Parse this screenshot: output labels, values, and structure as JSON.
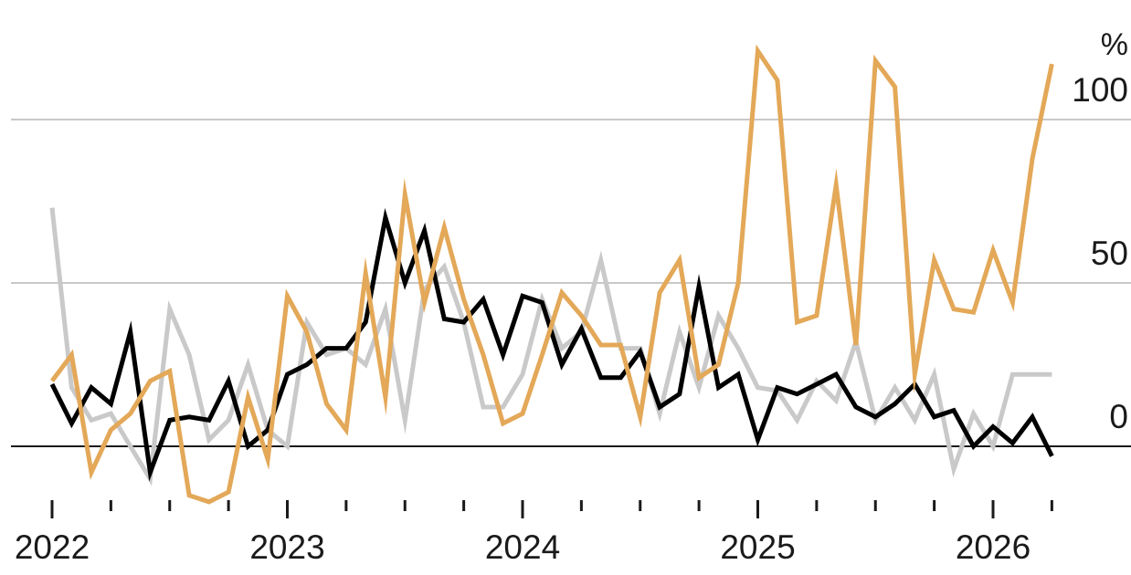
{
  "chart_data": {
    "type": "line",
    "title": "",
    "xlabel": "",
    "ylabel": "",
    "y_unit": "%",
    "xlim": [
      2022.0,
      2026.35
    ],
    "ylim": [
      -18,
      120
    ],
    "y_gridlines": [
      50,
      100
    ],
    "y_tick_labels": [
      "0",
      "50",
      "100"
    ],
    "y_tick_values": [
      0,
      50,
      100
    ],
    "x_tick_labels": [
      "2022",
      "2023",
      "2024",
      "2025",
      "2026"
    ],
    "x_tick_values": [
      2022,
      2023,
      2024,
      2025,
      2026
    ],
    "minor_tick_step": 0.25,
    "grid": true,
    "legend": "none",
    "series": [
      {
        "color": "#c9c9c9",
        "x": [
          2022.0,
          2022.083,
          2022.167,
          2022.25,
          2022.333,
          2022.417,
          2022.5,
          2022.583,
          2022.667,
          2022.75,
          2022.833,
          2022.917,
          2023.0,
          2023.083,
          2023.167,
          2023.25,
          2023.333,
          2023.417,
          2023.5,
          2023.583,
          2023.667,
          2023.75,
          2023.833,
          2023.917,
          2024.0,
          2024.083,
          2024.167,
          2024.25,
          2024.333,
          2024.417,
          2024.5,
          2024.583,
          2024.667,
          2024.75,
          2024.833,
          2024.917,
          2025.0,
          2025.083,
          2025.167,
          2025.25,
          2025.333,
          2025.417,
          2025.5,
          2025.583,
          2025.667,
          2025.75,
          2025.833,
          2025.917,
          2026.0,
          2026.083,
          2026.167,
          2026.25
        ],
        "values": [
          73,
          18,
          8,
          10,
          0,
          -10,
          42,
          28,
          2,
          8,
          25,
          5,
          0,
          38,
          28,
          30,
          25,
          42,
          8,
          48,
          55,
          38,
          12,
          12,
          22,
          45,
          30,
          35,
          57,
          30,
          30,
          10,
          35,
          18,
          40,
          30,
          18,
          17,
          8,
          20,
          14,
          32,
          8,
          18,
          8,
          22,
          -7,
          10,
          0,
          22,
          22,
          22
        ]
      },
      {
        "color": "#000000",
        "x": [
          2022.0,
          2022.083,
          2022.167,
          2022.25,
          2022.333,
          2022.417,
          2022.5,
          2022.583,
          2022.667,
          2022.75,
          2022.833,
          2022.917,
          2023.0,
          2023.083,
          2023.167,
          2023.25,
          2023.333,
          2023.417,
          2023.5,
          2023.583,
          2023.667,
          2023.75,
          2023.833,
          2023.917,
          2024.0,
          2024.083,
          2024.167,
          2024.25,
          2024.333,
          2024.417,
          2024.5,
          2024.583,
          2024.667,
          2024.75,
          2024.833,
          2024.917,
          2025.0,
          2025.083,
          2025.167,
          2025.25,
          2025.333,
          2025.417,
          2025.5,
          2025.583,
          2025.667,
          2025.75,
          2025.833,
          2025.917,
          2026.0,
          2026.083,
          2026.167,
          2026.25
        ],
        "values": [
          19,
          7,
          18,
          13,
          35,
          -8,
          8,
          9,
          8,
          20,
          0,
          5,
          22,
          25,
          30,
          30,
          38,
          70,
          50,
          66,
          39,
          38,
          45,
          28,
          46,
          44,
          25,
          36,
          21,
          21,
          29,
          12,
          16,
          49,
          18,
          22,
          2,
          18,
          16,
          19,
          22,
          12,
          9,
          13,
          19,
          9,
          11,
          0,
          6,
          1,
          9,
          -3
        ]
      },
      {
        "color": "#e3a858",
        "x": [
          2022.0,
          2022.083,
          2022.167,
          2022.25,
          2022.333,
          2022.417,
          2022.5,
          2022.583,
          2022.667,
          2022.75,
          2022.833,
          2022.917,
          2023.0,
          2023.083,
          2023.167,
          2023.25,
          2023.333,
          2023.417,
          2023.5,
          2023.583,
          2023.667,
          2023.75,
          2023.833,
          2023.917,
          2024.0,
          2024.083,
          2024.167,
          2024.25,
          2024.333,
          2024.417,
          2024.5,
          2024.583,
          2024.667,
          2024.75,
          2024.833,
          2024.917,
          2025.0,
          2025.083,
          2025.167,
          2025.25,
          2025.333,
          2025.417,
          2025.5,
          2025.583,
          2025.667,
          2025.75,
          2025.833,
          2025.917,
          2026.0,
          2026.083,
          2026.167,
          2026.25
        ],
        "values": [
          20,
          28,
          -8,
          5,
          10,
          20,
          23,
          -15,
          -17,
          -14,
          15,
          -4,
          46,
          35,
          13,
          5,
          53,
          15,
          77,
          44,
          67,
          45,
          28,
          7,
          10,
          28,
          47,
          40,
          31,
          31,
          9,
          47,
          57,
          21,
          25,
          50,
          121,
          112,
          38,
          40,
          80,
          31,
          118,
          110,
          22,
          57,
          42,
          41,
          60,
          44,
          88,
          117
        ]
      }
    ]
  }
}
